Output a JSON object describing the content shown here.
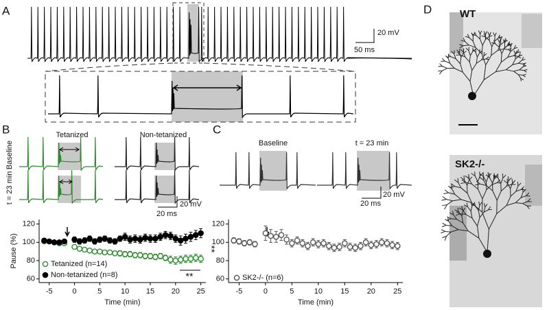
{
  "panels": {
    "a": {
      "letter": "A",
      "scale_v": "20 mV",
      "scale_h": "50 ms"
    },
    "b": {
      "letter": "B",
      "trace_left": "Tetanized",
      "trace_right": "Non-tetanized",
      "row_top": "Baseline",
      "row_bottom": "t = 23 min",
      "scale_v": "20 mV",
      "scale_h": "20 ms"
    },
    "c": {
      "letter": "C",
      "trace_left": "Baseline",
      "trace_right": "t = 23 min",
      "scale_v": "20 mV",
      "scale_h": "20 ms"
    },
    "d": {
      "letter": "D",
      "image_top": "WT",
      "image_bottom": "SK2-/-"
    }
  },
  "chart_data": [
    {
      "type": "scatter",
      "xlabel": "Time (min)",
      "ylabel": "Pause (%)",
      "x": [
        -6,
        -5,
        -4,
        -3,
        -2,
        0,
        1,
        2,
        3,
        4,
        5,
        6,
        7,
        8,
        9,
        10,
        11,
        12,
        13,
        14,
        15,
        16,
        17,
        18,
        19,
        20,
        21,
        22,
        23,
        24,
        25
      ],
      "series": [
        {
          "name": "Tetanized (n=14)",
          "color": "#2e8b2e",
          "filled": false,
          "values": [
            101,
            101,
            100,
            99,
            99,
            95,
            93,
            92,
            91,
            90,
            90,
            89,
            89,
            88,
            88,
            87,
            87,
            86,
            86,
            85,
            85,
            84,
            85,
            83,
            81,
            80,
            81,
            82,
            82,
            83,
            82
          ],
          "errors": [
            2,
            2,
            2,
            2,
            2,
            2,
            2,
            2,
            2,
            2,
            2,
            2,
            2,
            2,
            3,
            3,
            3,
            3,
            3,
            3,
            3,
            3,
            3,
            3,
            4,
            4,
            4,
            4,
            4,
            4,
            4
          ]
        },
        {
          "name": "Non-tetanized (n=8)",
          "color": "#000000",
          "filled": true,
          "values": [
            102,
            101,
            100,
            100,
            101,
            103,
            101,
            102,
            104,
            101,
            103,
            104,
            102,
            101,
            104,
            106,
            103,
            104,
            103,
            105,
            104,
            104,
            106,
            108,
            107,
            104,
            102,
            104,
            106,
            108,
            110
          ],
          "errors": [
            2,
            2,
            2,
            2,
            2,
            3,
            3,
            3,
            3,
            3,
            3,
            3,
            3,
            3,
            3,
            4,
            4,
            4,
            4,
            4,
            4,
            4,
            4,
            4,
            4,
            4,
            5,
            5,
            5,
            5,
            5
          ]
        }
      ],
      "annotations": [
        "**",
        "**"
      ],
      "xlim": [
        -7,
        26
      ],
      "ylim": [
        56,
        125
      ],
      "xticks": [
        -5,
        0,
        5,
        10,
        15,
        20,
        25
      ],
      "yticks": [
        60,
        80,
        100,
        120
      ]
    },
    {
      "type": "scatter",
      "xlabel": "Time (min)",
      "x": [
        -6,
        -5,
        -4,
        -3,
        -2,
        0,
        1,
        2,
        3,
        4,
        5,
        6,
        7,
        8,
        9,
        10,
        11,
        12,
        13,
        14,
        15,
        16,
        17,
        18,
        19,
        20,
        21,
        22,
        23,
        24,
        25
      ],
      "series": [
        {
          "name": "SK2-/- (n=6)",
          "color": "#555555",
          "filled": false,
          "values": [
            102,
            101,
            99,
            100,
            98,
            110,
            107,
            106,
            108,
            103,
            99,
            102,
            99,
            96,
            100,
            98,
            99,
            96,
            94,
            95,
            99,
            95,
            94,
            96,
            100,
            97,
            98,
            100,
            99,
            97,
            96
          ],
          "errors": [
            3,
            3,
            3,
            3,
            3,
            8,
            7,
            6,
            6,
            5,
            4,
            4,
            4,
            4,
            4,
            4,
            4,
            4,
            4,
            4,
            4,
            4,
            4,
            4,
            4,
            4,
            4,
            4,
            4,
            4,
            4
          ]
        }
      ],
      "xlim": [
        -7,
        26
      ],
      "ylim": [
        56,
        125
      ],
      "xticks": [
        -5,
        0,
        5,
        10,
        15,
        20,
        25
      ],
      "yticks": [
        60,
        80,
        100,
        120
      ]
    }
  ]
}
